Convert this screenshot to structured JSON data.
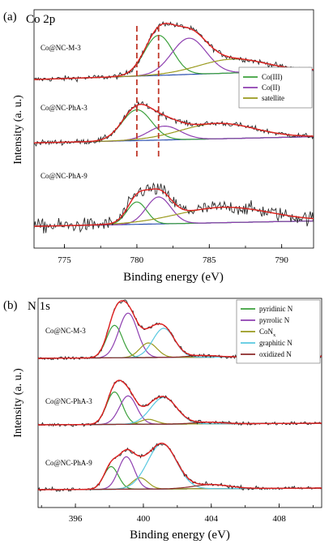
{
  "chart_data": [
    {
      "panel": "(a)",
      "type": "line",
      "title": "Co 2p",
      "xlabel": "Binding energy (eV)",
      "ylabel": "Intensity (a. u.)",
      "xlim": [
        772.9,
        792.2
      ],
      "xticks": [
        "775",
        "780",
        "785",
        "790"
      ],
      "xtick_values": [
        775,
        780,
        785,
        790
      ],
      "grid": false,
      "markers": [
        780.0,
        781.5
      ],
      "marker_color": "#c0392b",
      "legend": {
        "placement": "middle-right",
        "entries": [
          {
            "name": "Co(III)",
            "color": "#3ca03c"
          },
          {
            "name": "Co(II)",
            "color": "#8e3fb0"
          },
          {
            "name": "satellite",
            "color": "#9a9a1e"
          }
        ]
      },
      "samples": [
        {
          "name": "Co@NC-M-3",
          "baseline_start": 2.0,
          "baseline_end": 14.0,
          "peaks": [
            {
              "component": "Co(III)",
              "center": 781.5,
              "fwhm": 2.3,
              "height": 52
            },
            {
              "component": "Co(II)",
              "center": 783.6,
              "fwhm": 2.8,
              "height": 47
            },
            {
              "component": "satellite",
              "center": 786.6,
              "fwhm": 5.5,
              "height": 18
            }
          ],
          "noise": 4.5
        },
        {
          "name": "Co@NC-PhA-3",
          "baseline_start": 4.0,
          "baseline_end": 12.0,
          "peaks": [
            {
              "component": "Co(III)",
              "center": 780.0,
              "fwhm": 2.4,
              "height": 40
            },
            {
              "component": "Co(II)",
              "center": 781.9,
              "fwhm": 2.6,
              "height": 18
            },
            {
              "component": "satellite",
              "center": 785.6,
              "fwhm": 6.0,
              "height": 20
            }
          ],
          "noise": 4.5
        },
        {
          "name": "Co@NC-PhA-9",
          "baseline_start": 3.0,
          "baseline_end": 10.0,
          "peaks": [
            {
              "component": "Co(III)",
              "center": 780.0,
              "fwhm": 1.6,
              "height": 29
            },
            {
              "component": "Co(II)",
              "center": 781.5,
              "fwhm": 2.0,
              "height": 35
            },
            {
              "component": "satellite",
              "center": 786.0,
              "fwhm": 7.5,
              "height": 20
            }
          ],
          "noise": 12
        }
      ]
    },
    {
      "panel": "(b)",
      "type": "line",
      "title": "N 1s",
      "xlabel": "Binding energy (eV)",
      "ylabel": "Intensity (a. u.)",
      "xlim": [
        393.8,
        410.5
      ],
      "xticks": [
        "396",
        "400",
        "404",
        "408"
      ],
      "xtick_values": [
        396,
        400,
        404,
        408
      ],
      "grid": false,
      "legend": {
        "placement": "top-right",
        "entries": [
          {
            "name": "pyridinic N",
            "color": "#3ca03c"
          },
          {
            "name": "pyrrolic N",
            "color": "#8e3fb0"
          },
          {
            "name": "CoN",
            "sub": "x",
            "color": "#9a9a1e"
          },
          {
            "name": "graphitic N",
            "color": "#58c8e0"
          },
          {
            "name": "oxidized N",
            "color": "#8b2a2a"
          }
        ]
      },
      "samples": [
        {
          "name": "Co@NC-M-3",
          "baseline_start": 1.0,
          "baseline_end": 3.5,
          "peaks": [
            {
              "component": "pyridinic N",
              "center": 398.3,
              "fwhm": 1.1,
              "height": 40
            },
            {
              "component": "pyrrolic N",
              "center": 399.1,
              "fwhm": 1.3,
              "height": 55
            },
            {
              "component": "CoN_x",
              "center": 400.3,
              "fwhm": 1.2,
              "height": 18
            },
            {
              "component": "graphitic N",
              "center": 401.2,
              "fwhm": 1.5,
              "height": 36
            },
            {
              "component": "oxidized N",
              "center": 403.5,
              "fwhm": 2.0,
              "height": 2
            }
          ],
          "noise": 3
        },
        {
          "name": "Co@NC-PhA-3",
          "baseline_start": 1.0,
          "baseline_end": 3.0,
          "peaks": [
            {
              "component": "pyridinic N",
              "center": 398.3,
              "fwhm": 1.1,
              "height": 40
            },
            {
              "component": "pyrrolic N",
              "center": 399.1,
              "fwhm": 1.2,
              "height": 35
            },
            {
              "component": "CoN_x",
              "center": 400.3,
              "fwhm": 1.1,
              "height": 6
            },
            {
              "component": "graphitic N",
              "center": 401.2,
              "fwhm": 1.8,
              "height": 33
            },
            {
              "component": "oxidized N",
              "center": 403.8,
              "fwhm": 2.0,
              "height": 2
            }
          ],
          "noise": 3
        },
        {
          "name": "Co@NC-PhA-9",
          "baseline_start": 1.0,
          "baseline_end": 3.0,
          "peaks": [
            {
              "component": "pyridinic N",
              "center": 398.1,
              "fwhm": 1.0,
              "height": 28
            },
            {
              "component": "pyrrolic N",
              "center": 399.0,
              "fwhm": 1.1,
              "height": 40
            },
            {
              "component": "CoN_x",
              "center": 399.8,
              "fwhm": 1.1,
              "height": 14
            },
            {
              "component": "graphitic N",
              "center": 401.1,
              "fwhm": 2.0,
              "height": 56
            },
            {
              "component": "oxidized N",
              "center": 404.0,
              "fwhm": 2.5,
              "height": 5
            }
          ],
          "noise": 3
        }
      ]
    }
  ],
  "colors": {
    "raw": "#2a2a2a",
    "fit": "#e02020",
    "baseline": "#2a4fb0"
  }
}
